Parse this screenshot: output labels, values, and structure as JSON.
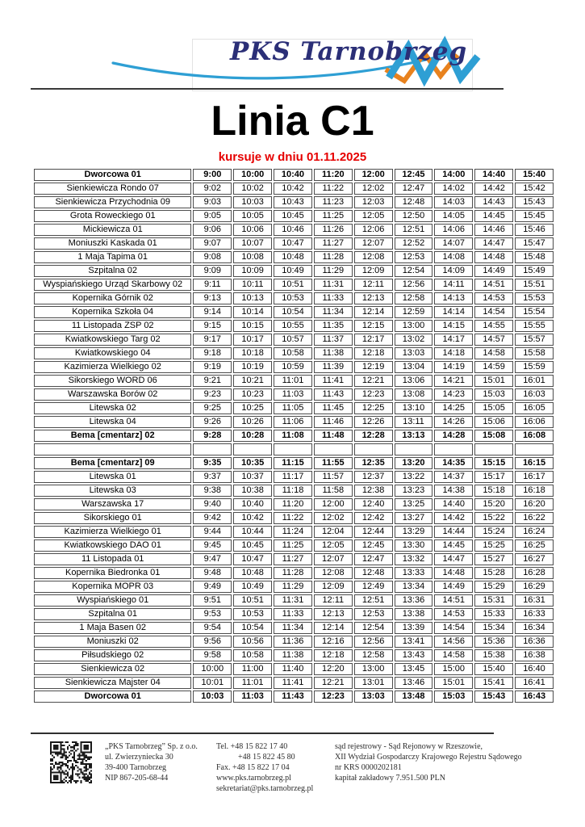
{
  "page": {
    "title": "Linia C1",
    "subtitle": "kursuje w dniu 01.11.2025",
    "colors": {
      "subtitle_red": "#e60000",
      "logo_navy": "#2b2f77",
      "swoosh_blue": "#2e9fd4",
      "swoosh_orange": "#e8821e",
      "grid_gray": "#4d4d4d"
    }
  },
  "logo": {
    "text": "PKS Tarnobrzeg"
  },
  "timetable": {
    "sections": [
      {
        "rows": [
          {
            "name": "Dworcowa 01",
            "bold": true,
            "times": [
              "9:00",
              "10:00",
              "10:40",
              "11:20",
              "12:00",
              "12:45",
              "14:00",
              "14:40",
              "15:40"
            ]
          },
          {
            "name": "Sienkiewicza Rondo 07",
            "bold": false,
            "times": [
              "9:02",
              "10:02",
              "10:42",
              "11:22",
              "12:02",
              "12:47",
              "14:02",
              "14:42",
              "15:42"
            ]
          },
          {
            "name": "Sienkiewicza Przychodnia 09",
            "bold": false,
            "times": [
              "9:03",
              "10:03",
              "10:43",
              "11:23",
              "12:03",
              "12:48",
              "14:03",
              "14:43",
              "15:43"
            ]
          },
          {
            "name": "Grota Roweckiego 01",
            "bold": false,
            "times": [
              "9:05",
              "10:05",
              "10:45",
              "11:25",
              "12:05",
              "12:50",
              "14:05",
              "14:45",
              "15:45"
            ]
          },
          {
            "name": "Mickiewicza 01",
            "bold": false,
            "times": [
              "9:06",
              "10:06",
              "10:46",
              "11:26",
              "12:06",
              "12:51",
              "14:06",
              "14:46",
              "15:46"
            ]
          },
          {
            "name": "Moniuszki Kaskada 01",
            "bold": false,
            "times": [
              "9:07",
              "10:07",
              "10:47",
              "11:27",
              "12:07",
              "12:52",
              "14:07",
              "14:47",
              "15:47"
            ]
          },
          {
            "name": "1 Maja Tapima 01",
            "bold": false,
            "times": [
              "9:08",
              "10:08",
              "10:48",
              "11:28",
              "12:08",
              "12:53",
              "14:08",
              "14:48",
              "15:48"
            ]
          },
          {
            "name": "Szpitalna 02",
            "bold": false,
            "times": [
              "9:09",
              "10:09",
              "10:49",
              "11:29",
              "12:09",
              "12:54",
              "14:09",
              "14:49",
              "15:49"
            ]
          },
          {
            "name": "Wyspiańskiego Urząd Skarbowy 02",
            "bold": false,
            "times": [
              "9:11",
              "10:11",
              "10:51",
              "11:31",
              "12:11",
              "12:56",
              "14:11",
              "14:51",
              "15:51"
            ]
          },
          {
            "name": "Kopernika Górnik 02",
            "bold": false,
            "times": [
              "9:13",
              "10:13",
              "10:53",
              "11:33",
              "12:13",
              "12:58",
              "14:13",
              "14:53",
              "15:53"
            ]
          },
          {
            "name": "Kopernika Szkoła 04",
            "bold": false,
            "times": [
              "9:14",
              "10:14",
              "10:54",
              "11:34",
              "12:14",
              "12:59",
              "14:14",
              "14:54",
              "15:54"
            ]
          },
          {
            "name": "11 Listopada ZSP 02",
            "bold": false,
            "times": [
              "9:15",
              "10:15",
              "10:55",
              "11:35",
              "12:15",
              "13:00",
              "14:15",
              "14:55",
              "15:55"
            ]
          },
          {
            "name": "Kwiatkowskiego Targ 02",
            "bold": false,
            "times": [
              "9:17",
              "10:17",
              "10:57",
              "11:37",
              "12:17",
              "13:02",
              "14:17",
              "14:57",
              "15:57"
            ]
          },
          {
            "name": "Kwiatkowskiego 04",
            "bold": false,
            "times": [
              "9:18",
              "10:18",
              "10:58",
              "11:38",
              "12:18",
              "13:03",
              "14:18",
              "14:58",
              "15:58"
            ]
          },
          {
            "name": "Kazimierza Wielkiego 02",
            "bold": false,
            "times": [
              "9:19",
              "10:19",
              "10:59",
              "11:39",
              "12:19",
              "13:04",
              "14:19",
              "14:59",
              "15:59"
            ]
          },
          {
            "name": "Sikorskiego WORD 06",
            "bold": false,
            "times": [
              "9:21",
              "10:21",
              "11:01",
              "11:41",
              "12:21",
              "13:06",
              "14:21",
              "15:01",
              "16:01"
            ]
          },
          {
            "name": "Warszawska Borów 02",
            "bold": false,
            "times": [
              "9:23",
              "10:23",
              "11:03",
              "11:43",
              "12:23",
              "13:08",
              "14:23",
              "15:03",
              "16:03"
            ]
          },
          {
            "name": "Litewska 02",
            "bold": false,
            "times": [
              "9:25",
              "10:25",
              "11:05",
              "11:45",
              "12:25",
              "13:10",
              "14:25",
              "15:05",
              "16:05"
            ]
          },
          {
            "name": "Litewska 04",
            "bold": false,
            "times": [
              "9:26",
              "10:26",
              "11:06",
              "11:46",
              "12:26",
              "13:11",
              "14:26",
              "15:06",
              "16:06"
            ]
          },
          {
            "name": "Bema [cmentarz] 02",
            "bold": true,
            "times": [
              "9:28",
              "10:28",
              "11:08",
              "11:48",
              "12:28",
              "13:13",
              "14:28",
              "15:08",
              "16:08"
            ]
          }
        ]
      },
      {
        "rows": [
          {
            "name": "Bema [cmentarz] 09",
            "bold": true,
            "times": [
              "9:35",
              "10:35",
              "11:15",
              "11:55",
              "12:35",
              "13:20",
              "14:35",
              "15:15",
              "16:15"
            ]
          },
          {
            "name": "Litewska 01",
            "bold": false,
            "times": [
              "9:37",
              "10:37",
              "11:17",
              "11:57",
              "12:37",
              "13:22",
              "14:37",
              "15:17",
              "16:17"
            ]
          },
          {
            "name": "Litewska 03",
            "bold": false,
            "times": [
              "9:38",
              "10:38",
              "11:18",
              "11:58",
              "12:38",
              "13:23",
              "14:38",
              "15:18",
              "16:18"
            ]
          },
          {
            "name": "Warszawska 17",
            "bold": false,
            "times": [
              "9:40",
              "10:40",
              "11:20",
              "12:00",
              "12:40",
              "13:25",
              "14:40",
              "15:20",
              "16:20"
            ]
          },
          {
            "name": "Sikorskiego 01",
            "bold": false,
            "times": [
              "9:42",
              "10:42",
              "11:22",
              "12:02",
              "12:42",
              "13:27",
              "14:42",
              "15:22",
              "16:22"
            ]
          },
          {
            "name": "Kazimierza Wielkiego 01",
            "bold": false,
            "times": [
              "9:44",
              "10:44",
              "11:24",
              "12:04",
              "12:44",
              "13:29",
              "14:44",
              "15:24",
              "16:24"
            ]
          },
          {
            "name": "Kwiatkowskiego DAO 01",
            "bold": false,
            "times": [
              "9:45",
              "10:45",
              "11:25",
              "12:05",
              "12:45",
              "13:30",
              "14:45",
              "15:25",
              "16:25"
            ]
          },
          {
            "name": "11 Listopada 01",
            "bold": false,
            "times": [
              "9:47",
              "10:47",
              "11:27",
              "12:07",
              "12:47",
              "13:32",
              "14:47",
              "15:27",
              "16:27"
            ]
          },
          {
            "name": "Kopernika Biedronka 01",
            "bold": false,
            "times": [
              "9:48",
              "10:48",
              "11:28",
              "12:08",
              "12:48",
              "13:33",
              "14:48",
              "15:28",
              "16:28"
            ]
          },
          {
            "name": "Kopernika MOPR 03",
            "bold": false,
            "times": [
              "9:49",
              "10:49",
              "11:29",
              "12:09",
              "12:49",
              "13:34",
              "14:49",
              "15:29",
              "16:29"
            ]
          },
          {
            "name": "Wyspiańskiego 01",
            "bold": false,
            "times": [
              "9:51",
              "10:51",
              "11:31",
              "12:11",
              "12:51",
              "13:36",
              "14:51",
              "15:31",
              "16:31"
            ]
          },
          {
            "name": "Szpitalna 01",
            "bold": false,
            "times": [
              "9:53",
              "10:53",
              "11:33",
              "12:13",
              "12:53",
              "13:38",
              "14:53",
              "15:33",
              "16:33"
            ]
          },
          {
            "name": "1 Maja Basen 02",
            "bold": false,
            "times": [
              "9:54",
              "10:54",
              "11:34",
              "12:14",
              "12:54",
              "13:39",
              "14:54",
              "15:34",
              "16:34"
            ]
          },
          {
            "name": "Moniuszki 02",
            "bold": false,
            "times": [
              "9:56",
              "10:56",
              "11:36",
              "12:16",
              "12:56",
              "13:41",
              "14:56",
              "15:36",
              "16:36"
            ]
          },
          {
            "name": "Piłsudskiego 02",
            "bold": false,
            "times": [
              "9:58",
              "10:58",
              "11:38",
              "12:18",
              "12:58",
              "13:43",
              "14:58",
              "15:38",
              "16:38"
            ]
          },
          {
            "name": "Sienkiewicza 02",
            "bold": false,
            "times": [
              "10:00",
              "11:00",
              "11:40",
              "12:20",
              "13:00",
              "13:45",
              "15:00",
              "15:40",
              "16:40"
            ]
          },
          {
            "name": "Sienkiewicza Majster 04",
            "bold": false,
            "times": [
              "10:01",
              "11:01",
              "11:41",
              "12:21",
              "13:01",
              "13:46",
              "15:01",
              "15:41",
              "16:41"
            ]
          },
          {
            "name": "Dworcowa 01",
            "bold": true,
            "times": [
              "10:03",
              "11:03",
              "11:43",
              "12:23",
              "13:03",
              "13:48",
              "15:03",
              "15:43",
              "16:43"
            ]
          }
        ]
      }
    ]
  },
  "footer": {
    "company": [
      "„PKS Tarnobrzeg” Sp. z o.o.",
      "ul.  Zwierzyniecka 30",
      "39-400 Tarnobrzeg",
      "NIP 867-205-68-44"
    ],
    "contact": [
      "Tel.  +48 15 822 17 40",
      "+48 15 822 45 80",
      "Fax. +48 15 822 17 04",
      "www.pks.tarnobrzeg.pl",
      "sekretariat@pks.tarnobrzeg.pl"
    ],
    "registry": [
      "sąd rejestrowy - Sąd Rejonowy w Rzeszowie,",
      "XII Wydział Gospodarczy Krajowego Rejestru Sądowego",
      "nr KRS 0000202181",
      "kapitał zakładowy 7.951.500 PLN"
    ]
  }
}
